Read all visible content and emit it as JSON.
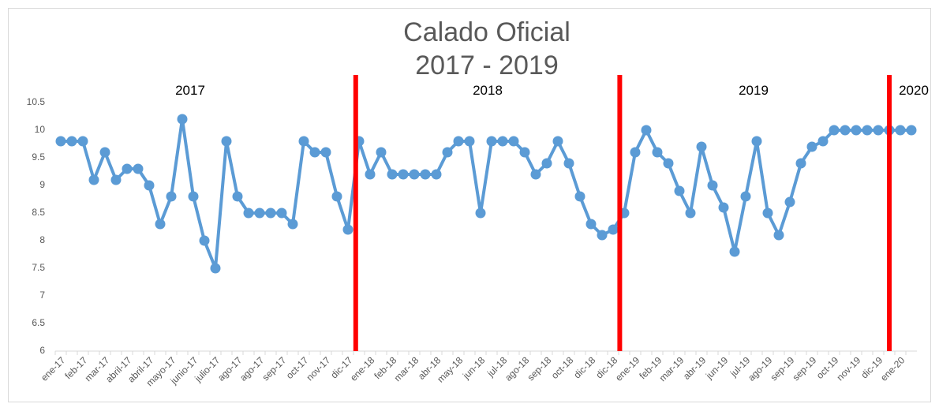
{
  "chart_data": {
    "type": "line",
    "title": "Calado Oficial",
    "subtitle": "2017 - 2019",
    "categories": [
      "ene-17",
      null,
      "feb-17",
      null,
      "mar-17",
      null,
      "abril-17",
      null,
      "abril-17",
      null,
      "mayo-17",
      null,
      "junio-17",
      null,
      "julio-17",
      null,
      "ago-17",
      null,
      "ago-17",
      null,
      "sep-17",
      null,
      "oct-17",
      null,
      "nov-17",
      null,
      "dic-17",
      null,
      "ene-18",
      null,
      "feb-18",
      null,
      "mar-18",
      null,
      "abr-18",
      null,
      "may-18",
      null,
      "jun-18",
      null,
      "jul-18",
      null,
      "ago-18",
      null,
      "sep-18",
      null,
      "oct-18",
      null,
      "dic-18",
      null,
      "dic-18",
      null,
      "ene-19",
      null,
      "feb-19",
      null,
      "mar-19",
      null,
      "abr-19",
      null,
      "jun-19",
      null,
      "jul-19",
      null,
      "ago-19",
      null,
      "sep-19",
      null,
      "sep-19",
      null,
      "oct-19",
      null,
      "nov-19",
      null,
      "dic-19",
      null,
      "ene-20",
      null
    ],
    "series": [
      {
        "name": "Calado",
        "color": "#5b9bd5",
        "values": [
          9.8,
          9.8,
          9.8,
          9.1,
          9.6,
          9.1,
          9.3,
          9.3,
          9.0,
          8.3,
          8.8,
          10.2,
          8.8,
          8.0,
          7.5,
          9.8,
          8.8,
          8.5,
          8.5,
          8.5,
          8.5,
          8.3,
          9.8,
          9.6,
          9.6,
          8.8,
          8.2,
          9.8,
          9.2,
          9.6,
          9.2,
          9.2,
          9.2,
          9.2,
          9.2,
          9.6,
          9.8,
          9.8,
          8.5,
          9.8,
          9.8,
          9.8,
          9.6,
          9.2,
          9.4,
          9.8,
          9.4,
          8.8,
          8.3,
          8.1,
          8.2,
          8.5,
          9.6,
          10.0,
          9.6,
          9.4,
          8.9,
          8.5,
          9.7,
          9.0,
          8.6,
          7.8,
          8.8,
          9.8,
          8.5,
          8.1,
          8.7,
          9.4,
          9.7,
          9.8,
          10,
          10,
          10,
          10,
          10,
          10,
          10,
          10
        ]
      }
    ],
    "ylim": [
      6,
      10.5
    ],
    "yticks": [
      6,
      6.5,
      7,
      7.5,
      8,
      8.5,
      9,
      9.5,
      10,
      10.5
    ],
    "annotations": [
      "2017",
      "2018",
      "2019",
      "2020"
    ],
    "vlines": [
      26.7,
      50.6,
      75
    ],
    "vline_color": "#ff0000",
    "grid": false
  }
}
